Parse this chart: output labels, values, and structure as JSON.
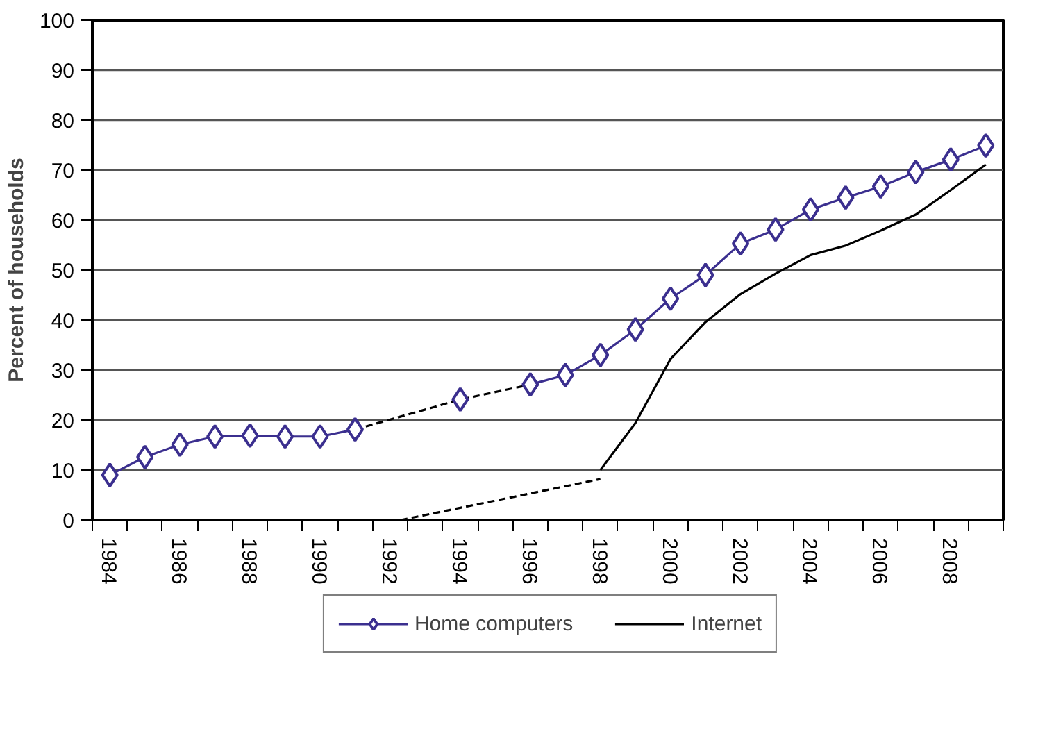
{
  "chart_data": {
    "type": "line",
    "ylabel": "Percent of households",
    "x": [
      1984,
      1985,
      1986,
      1987,
      1988,
      1989,
      1990,
      1991,
      1992,
      1993,
      1994,
      1995,
      1996,
      1997,
      1998,
      1999,
      2000,
      2001,
      2002,
      2003,
      2004,
      2005,
      2006,
      2007,
      2008,
      2009
    ],
    "series": [
      {
        "name": "Home computers",
        "color": "#3b2f8f",
        "marker": "diamond",
        "line_style": "solid",
        "values": [
          9,
          12.6,
          15.1,
          16.7,
          16.9,
          16.7,
          16.7,
          18.1,
          null,
          null,
          24.1,
          null,
          27.1,
          29,
          33,
          38.1,
          44.3,
          49,
          55.3,
          58.1,
          62.1,
          64.5,
          66.7,
          69.6,
          72.1,
          74.9
        ]
      },
      {
        "color": "#000000",
        "line_style": "dashed",
        "marker": "none",
        "x": [
          1991,
          1994,
          1996
        ],
        "values": [
          18.1,
          24.1,
          27.1
        ]
      },
      {
        "name": "Internet",
        "color": "#000000",
        "marker": "none",
        "line_style": "solid",
        "x": [
          1998,
          1999,
          2000,
          2001,
          2002,
          2003,
          2004,
          2005,
          2006,
          2007,
          2008,
          2009
        ],
        "values": [
          10,
          19.4,
          32.2,
          39.6,
          45.2,
          49.3,
          53,
          54.9,
          57.9,
          61.1,
          66,
          71.1
        ]
      },
      {
        "color": "#000000",
        "line_style": "dashed",
        "marker": "none",
        "x": [
          1992.3,
          1998
        ],
        "values": [
          0,
          8.2
        ]
      }
    ],
    "xlim": [
      1983.5,
      2009.5
    ],
    "xticks": [
      {
        "value": 1984,
        "label": "1984"
      },
      {
        "value": 1986,
        "label": "1986"
      },
      {
        "value": 1988,
        "label": "1988"
      },
      {
        "value": 1990,
        "label": "1990"
      },
      {
        "value": 1992,
        "label": "1992"
      },
      {
        "value": 1994,
        "label": "1994"
      },
      {
        "value": 1996,
        "label": "1996"
      },
      {
        "value": 1998,
        "label": "1998"
      },
      {
        "value": 2000,
        "label": "2000"
      },
      {
        "value": 2002,
        "label": "2002"
      },
      {
        "value": 2004,
        "label": "2004"
      },
      {
        "value": 2006,
        "label": "2006"
      },
      {
        "value": 2008,
        "label": "2008"
      },
      {
        "value": 1983.5,
        "label": null
      },
      {
        "value": 1984.5,
        "label": null
      },
      {
        "value": 1985.5,
        "label": null
      },
      {
        "value": 1986.5,
        "label": null
      },
      {
        "value": 1987.5,
        "label": null
      },
      {
        "value": 1988.5,
        "label": null
      },
      {
        "value": 1989.5,
        "label": null
      },
      {
        "value": 1990.5,
        "label": null
      },
      {
        "value": 1991.5,
        "label": null
      },
      {
        "value": 1992.5,
        "label": null
      },
      {
        "value": 1993.5,
        "label": null
      },
      {
        "value": 1994.5,
        "label": null
      },
      {
        "value": 1995.5,
        "label": null
      },
      {
        "value": 1996.5,
        "label": null
      },
      {
        "value": 1997.5,
        "label": null
      },
      {
        "value": 1998.5,
        "label": null
      },
      {
        "value": 1999.5,
        "label": null
      },
      {
        "value": 2000.5,
        "label": null
      },
      {
        "value": 2001.5,
        "label": null
      },
      {
        "value": 2002.5,
        "label": null
      },
      {
        "value": 2003.5,
        "label": null
      },
      {
        "value": 2004.5,
        "label": null
      },
      {
        "value": 2005.5,
        "label": null
      },
      {
        "value": 2006.5,
        "label": null
      },
      {
        "value": 2007.5,
        "label": null
      },
      {
        "value": 2008.5,
        "label": null
      },
      {
        "value": 2009.5,
        "label": null
      }
    ],
    "ylim": [
      0,
      100
    ],
    "yticks": [
      0,
      10,
      20,
      30,
      40,
      50,
      60,
      70,
      80,
      90,
      100
    ],
    "grid": "y",
    "legend": "bottom"
  }
}
